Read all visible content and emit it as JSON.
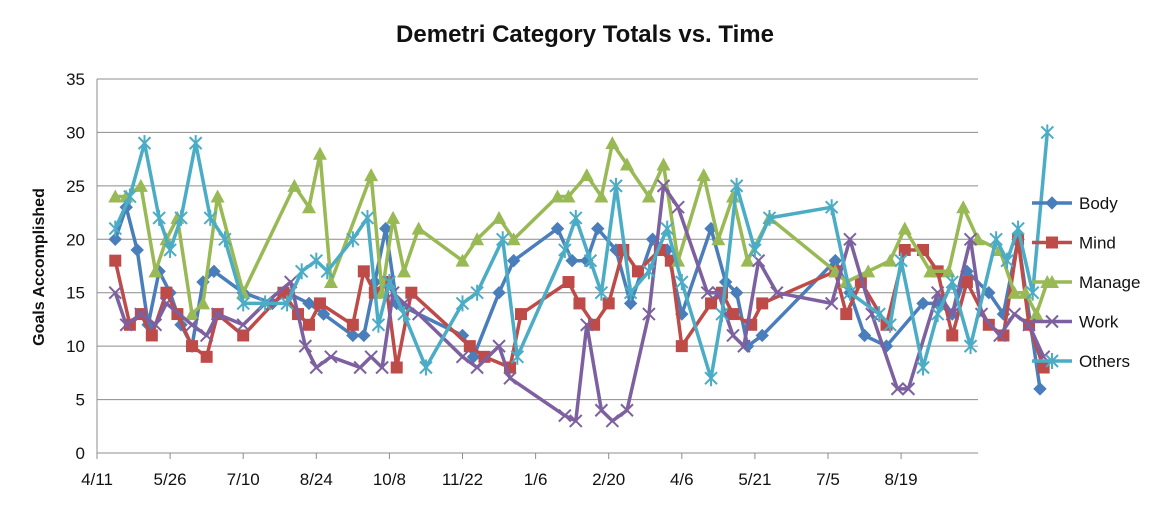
{
  "chart_data": {
    "type": "line",
    "title": "Demetri Category Totals vs. Time",
    "xlabel": "",
    "ylabel": "Goals Accomplished",
    "ylim": [
      0,
      35
    ],
    "yticks": [
      "0",
      "5",
      "10",
      "15",
      "20",
      "25",
      "30",
      "35"
    ],
    "xticks": [
      "4/11",
      "5/26",
      "7/10",
      "8/24",
      "10/8",
      "11/22",
      "1/6",
      "2/20",
      "4/6",
      "5/21",
      "7/5",
      "8/19"
    ],
    "grid": "horizontal",
    "legend": "right",
    "series": [
      {
        "name": "Body",
        "color": "#4a7ebb",
        "marker": "diamond",
        "points": [
          [
            0.25,
            20
          ],
          [
            0.4,
            23
          ],
          [
            0.55,
            19
          ],
          [
            0.7,
            12
          ],
          [
            0.85,
            17
          ],
          [
            1.0,
            15
          ],
          [
            1.15,
            12
          ],
          [
            1.3,
            10
          ],
          [
            1.45,
            16
          ],
          [
            1.6,
            17
          ],
          [
            2.0,
            15
          ],
          [
            2.4,
            14
          ],
          [
            2.6,
            15
          ],
          [
            2.9,
            14
          ],
          [
            3.1,
            13
          ],
          [
            3.5,
            11
          ],
          [
            3.65,
            11
          ],
          [
            3.8,
            16
          ],
          [
            3.95,
            21
          ],
          [
            4.1,
            14
          ],
          [
            5.0,
            11
          ],
          [
            5.15,
            9
          ],
          [
            5.5,
            15
          ],
          [
            5.7,
            18
          ],
          [
            6.3,
            21
          ],
          [
            6.5,
            18
          ],
          [
            6.7,
            18
          ],
          [
            6.85,
            21
          ],
          [
            7.1,
            19
          ],
          [
            7.3,
            14
          ],
          [
            7.6,
            20
          ],
          [
            7.8,
            19
          ],
          [
            8.0,
            13
          ],
          [
            8.4,
            21
          ],
          [
            8.6,
            16
          ],
          [
            8.75,
            15
          ],
          [
            8.9,
            10
          ],
          [
            9.1,
            11
          ],
          [
            10.1,
            18
          ],
          [
            10.3,
            15
          ],
          [
            10.5,
            11
          ],
          [
            10.8,
            10
          ],
          [
            11.3,
            14
          ],
          [
            11.5,
            14
          ],
          [
            11.7,
            13
          ],
          [
            11.9,
            17
          ],
          [
            12.2,
            15
          ],
          [
            12.4,
            13
          ],
          [
            12.6,
            20
          ],
          [
            12.9,
            6
          ]
        ]
      },
      {
        "name": "Mind",
        "color": "#be4b48",
        "marker": "square",
        "points": [
          [
            0.25,
            18
          ],
          [
            0.45,
            12
          ],
          [
            0.6,
            13
          ],
          [
            0.75,
            11
          ],
          [
            0.95,
            15
          ],
          [
            1.1,
            13
          ],
          [
            1.3,
            10
          ],
          [
            1.5,
            9
          ],
          [
            1.65,
            13
          ],
          [
            2.0,
            11
          ],
          [
            2.55,
            15
          ],
          [
            2.75,
            13
          ],
          [
            2.9,
            12
          ],
          [
            3.05,
            14
          ],
          [
            3.5,
            12
          ],
          [
            3.65,
            17
          ],
          [
            3.8,
            15
          ],
          [
            3.95,
            16
          ],
          [
            4.1,
            8
          ],
          [
            4.3,
            15
          ],
          [
            5.1,
            10
          ],
          [
            5.3,
            9
          ],
          [
            5.65,
            8
          ],
          [
            5.8,
            13
          ],
          [
            6.45,
            16
          ],
          [
            6.6,
            14
          ],
          [
            6.8,
            12
          ],
          [
            7.0,
            14
          ],
          [
            7.2,
            19
          ],
          [
            7.4,
            17
          ],
          [
            7.7,
            19
          ],
          [
            7.85,
            18
          ],
          [
            8.0,
            10
          ],
          [
            8.4,
            14
          ],
          [
            8.55,
            15
          ],
          [
            8.7,
            13
          ],
          [
            8.95,
            12
          ],
          [
            9.1,
            14
          ],
          [
            10.1,
            17
          ],
          [
            10.25,
            13
          ],
          [
            10.45,
            16
          ],
          [
            10.8,
            12
          ],
          [
            11.05,
            19
          ],
          [
            11.3,
            19
          ],
          [
            11.5,
            17
          ],
          [
            11.7,
            11
          ],
          [
            11.9,
            16
          ],
          [
            12.2,
            12
          ],
          [
            12.4,
            11
          ],
          [
            12.6,
            20
          ],
          [
            12.75,
            12
          ],
          [
            12.95,
            8
          ]
        ]
      },
      {
        "name": "Manage",
        "color": "#98b954",
        "marker": "triangle",
        "points": [
          [
            0.25,
            24
          ],
          [
            0.4,
            24
          ],
          [
            0.6,
            25
          ],
          [
            0.8,
            17
          ],
          [
            0.95,
            20
          ],
          [
            1.1,
            22
          ],
          [
            1.3,
            13
          ],
          [
            1.45,
            14
          ],
          [
            1.65,
            24
          ],
          [
            2.0,
            15
          ],
          [
            2.7,
            25
          ],
          [
            2.9,
            23
          ],
          [
            3.05,
            28
          ],
          [
            3.2,
            16
          ],
          [
            3.75,
            26
          ],
          [
            3.9,
            15
          ],
          [
            4.05,
            22
          ],
          [
            4.2,
            17
          ],
          [
            4.4,
            21
          ],
          [
            5.0,
            18
          ],
          [
            5.2,
            20
          ],
          [
            5.5,
            22
          ],
          [
            5.7,
            20
          ],
          [
            6.3,
            24
          ],
          [
            6.45,
            24
          ],
          [
            6.7,
            26
          ],
          [
            6.9,
            24
          ],
          [
            7.05,
            29
          ],
          [
            7.25,
            27
          ],
          [
            7.55,
            24
          ],
          [
            7.75,
            27
          ],
          [
            7.95,
            18
          ],
          [
            8.3,
            26
          ],
          [
            8.5,
            20
          ],
          [
            8.7,
            24
          ],
          [
            8.9,
            18
          ],
          [
            9.2,
            22
          ],
          [
            10.1,
            17
          ],
          [
            10.25,
            16
          ],
          [
            10.55,
            17
          ],
          [
            10.85,
            18
          ],
          [
            11.05,
            21
          ],
          [
            11.4,
            17
          ],
          [
            11.65,
            17
          ],
          [
            11.85,
            23
          ],
          [
            12.05,
            20
          ],
          [
            12.35,
            19
          ],
          [
            12.55,
            15
          ],
          [
            12.7,
            15
          ],
          [
            12.85,
            13
          ],
          [
            13.0,
            16
          ]
        ]
      },
      {
        "name": "Work",
        "color": "#7d60a0",
        "marker": "x",
        "points": [
          [
            0.25,
            15
          ],
          [
            0.4,
            12
          ],
          [
            0.6,
            13
          ],
          [
            0.8,
            12
          ],
          [
            0.95,
            14
          ],
          [
            1.3,
            12
          ],
          [
            1.5,
            11
          ],
          [
            1.65,
            13
          ],
          [
            2.0,
            12
          ],
          [
            2.3,
            14
          ],
          [
            2.65,
            16
          ],
          [
            2.85,
            10
          ],
          [
            3.0,
            8
          ],
          [
            3.2,
            9
          ],
          [
            3.6,
            8
          ],
          [
            3.75,
            9
          ],
          [
            3.9,
            8
          ],
          [
            4.05,
            15
          ],
          [
            4.2,
            14
          ],
          [
            4.4,
            13
          ],
          [
            5.0,
            9
          ],
          [
            5.2,
            8
          ],
          [
            5.5,
            10
          ],
          [
            5.65,
            7
          ],
          [
            6.4,
            3.5
          ],
          [
            6.55,
            3
          ],
          [
            6.7,
            12
          ],
          [
            6.9,
            4
          ],
          [
            7.05,
            3
          ],
          [
            7.25,
            4
          ],
          [
            7.55,
            13
          ],
          [
            7.75,
            25
          ],
          [
            7.95,
            23
          ],
          [
            8.35,
            15
          ],
          [
            8.5,
            15
          ],
          [
            8.7,
            11
          ],
          [
            8.85,
            10
          ],
          [
            9.05,
            18
          ],
          [
            9.3,
            15
          ],
          [
            10.05,
            14
          ],
          [
            10.3,
            20
          ],
          [
            10.6,
            13
          ],
          [
            10.95,
            6
          ],
          [
            11.1,
            6
          ],
          [
            11.5,
            15
          ],
          [
            11.7,
            13
          ],
          [
            11.95,
            20
          ],
          [
            12.1,
            13
          ],
          [
            12.35,
            11
          ],
          [
            12.55,
            13
          ],
          [
            12.75,
            12
          ],
          [
            12.95,
            9
          ]
        ]
      },
      {
        "name": "Others",
        "color": "#4bacc6",
        "marker": "asterisk",
        "points": [
          [
            0.25,
            21
          ],
          [
            0.45,
            24
          ],
          [
            0.65,
            29
          ],
          [
            0.85,
            22
          ],
          [
            1.0,
            19
          ],
          [
            1.15,
            22
          ],
          [
            1.35,
            29
          ],
          [
            1.55,
            22
          ],
          [
            1.75,
            20
          ],
          [
            2.0,
            14
          ],
          [
            2.3,
            14
          ],
          [
            2.6,
            14
          ],
          [
            2.8,
            17
          ],
          [
            3.0,
            18
          ],
          [
            3.15,
            17
          ],
          [
            3.5,
            20
          ],
          [
            3.7,
            22
          ],
          [
            3.85,
            12
          ],
          [
            4.0,
            16
          ],
          [
            4.2,
            13
          ],
          [
            4.5,
            8
          ],
          [
            5.0,
            14
          ],
          [
            5.2,
            15
          ],
          [
            5.55,
            20
          ],
          [
            5.75,
            9
          ],
          [
            6.4,
            19
          ],
          [
            6.55,
            22
          ],
          [
            6.75,
            18
          ],
          [
            6.9,
            15
          ],
          [
            7.1,
            25
          ],
          [
            7.3,
            15
          ],
          [
            7.55,
            17
          ],
          [
            7.8,
            21
          ],
          [
            8.0,
            16
          ],
          [
            8.4,
            7
          ],
          [
            8.55,
            13
          ],
          [
            8.75,
            25
          ],
          [
            9.0,
            19
          ],
          [
            9.2,
            22
          ],
          [
            10.05,
            23
          ],
          [
            10.3,
            15
          ],
          [
            10.7,
            13
          ],
          [
            10.85,
            12
          ],
          [
            11.0,
            18
          ],
          [
            11.3,
            8
          ],
          [
            11.5,
            13
          ],
          [
            11.7,
            16
          ],
          [
            11.95,
            10
          ],
          [
            12.3,
            20
          ],
          [
            12.45,
            18
          ],
          [
            12.6,
            21
          ],
          [
            12.8,
            15
          ],
          [
            13.0,
            30
          ]
        ]
      }
    ]
  }
}
